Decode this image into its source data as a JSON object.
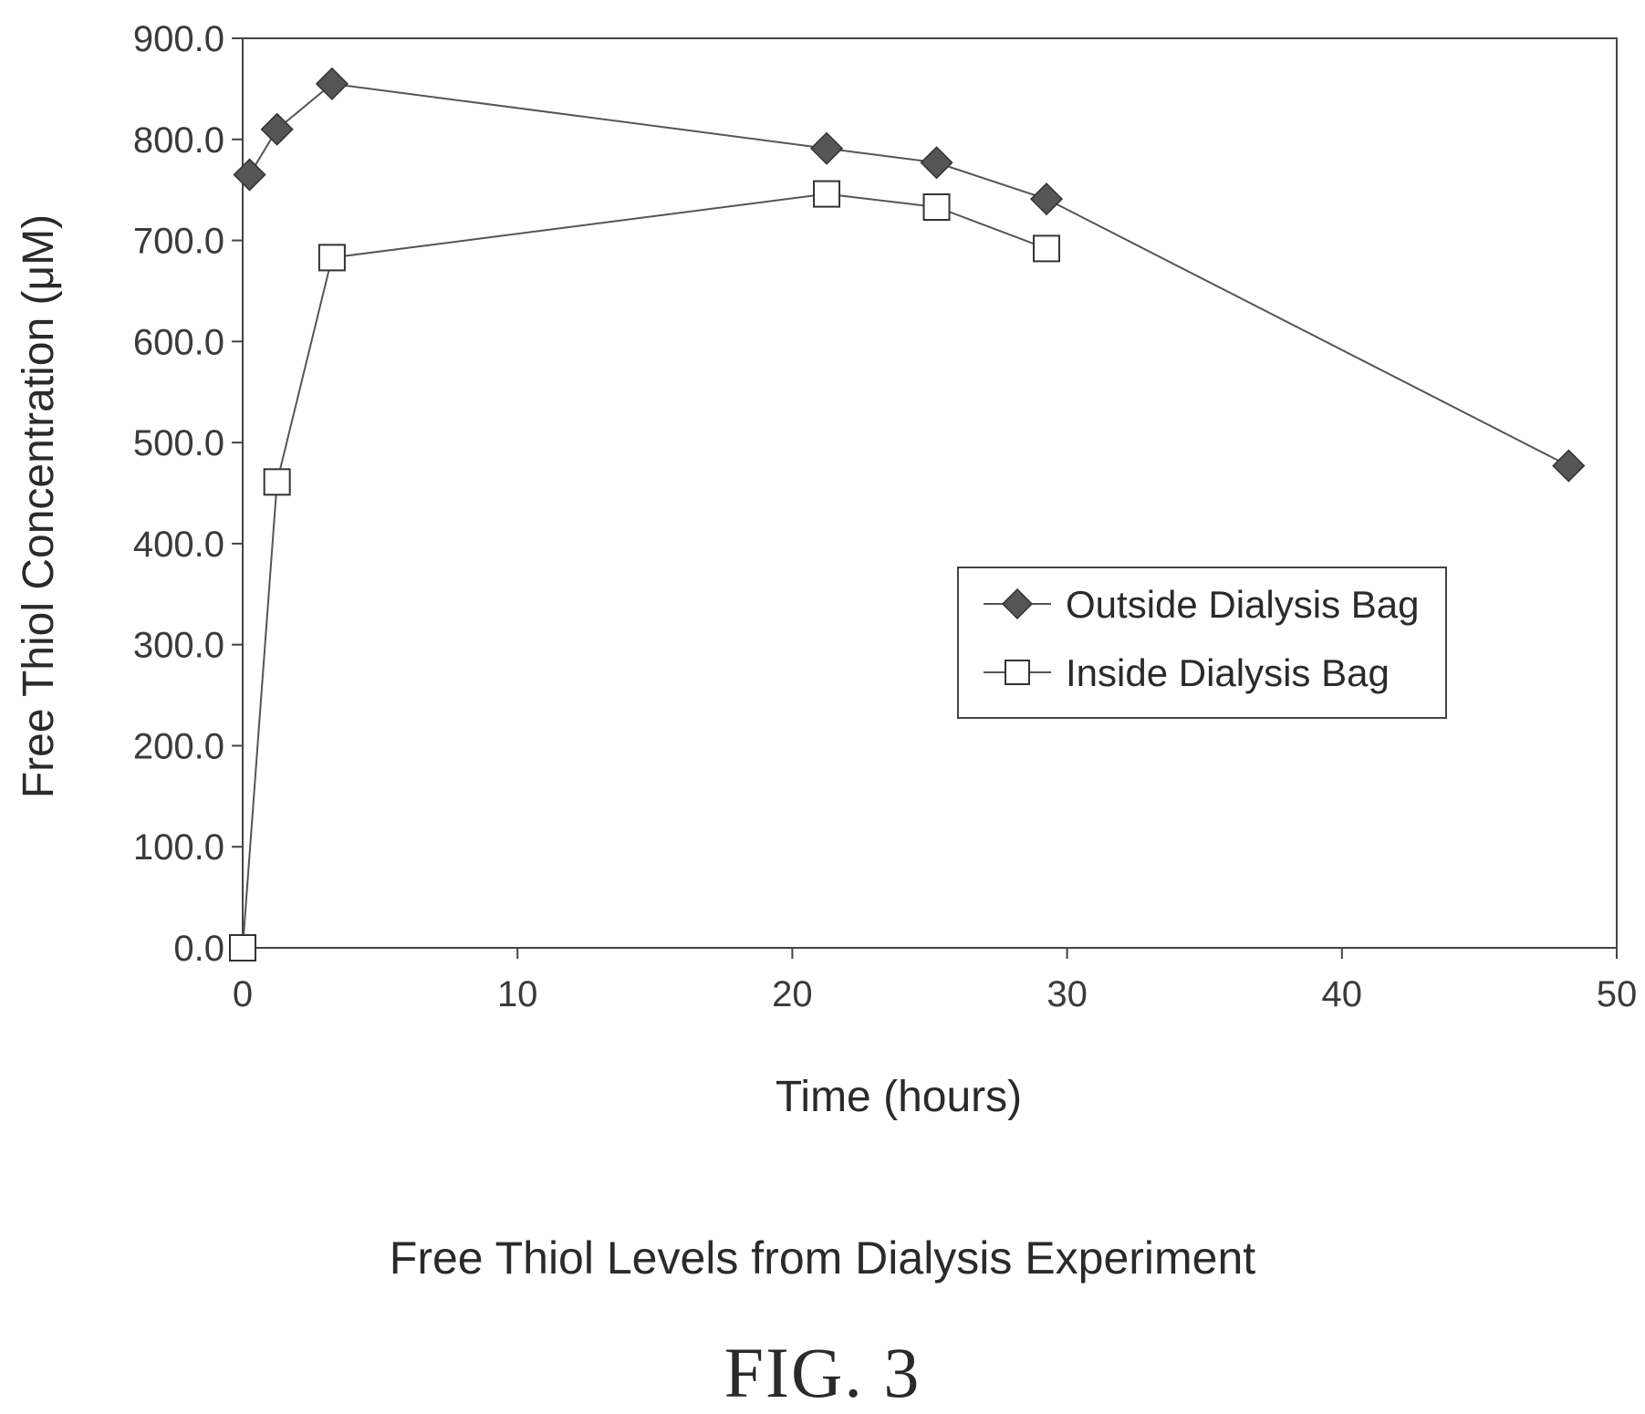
{
  "chart_data": {
    "type": "line",
    "title": "Free Thiol Levels from Dialysis Experiment",
    "xlabel": "Time (hours)",
    "ylabel": "Free Thiol Concentration (μM)",
    "xlim": [
      0,
      50
    ],
    "ylim": [
      0,
      900
    ],
    "x_ticks": [
      0,
      10,
      20,
      30,
      40,
      50
    ],
    "y_ticks": [
      0,
      100,
      200,
      300,
      400,
      500,
      600,
      700,
      800,
      900
    ],
    "y_tick_labels": [
      "0.0",
      "100.0",
      "200.0",
      "300.0",
      "400.0",
      "500.0",
      "600.0",
      "700.0",
      "800.0",
      "900.0"
    ],
    "grid": false,
    "legend_position": "center-right",
    "series": [
      {
        "name": "Outside Dialysis Bag",
        "marker": "diamond",
        "marker_fill": "#555555",
        "x": [
          0.25,
          1.25,
          3.25,
          21.25,
          25.25,
          29.25,
          48.25
        ],
        "y": [
          765,
          810,
          855,
          791,
          777,
          741,
          477
        ]
      },
      {
        "name": "Inside Dialysis Bag",
        "marker": "square",
        "marker_fill": "#ffffff",
        "x": [
          0,
          1.25,
          3.25,
          21.25,
          25.25,
          29.25
        ],
        "y": [
          0,
          461,
          683,
          746,
          733,
          692
        ]
      }
    ]
  },
  "figure": {
    "caption": "Free Thiol Levels from Dialysis Experiment",
    "label": "FIG. 3"
  }
}
